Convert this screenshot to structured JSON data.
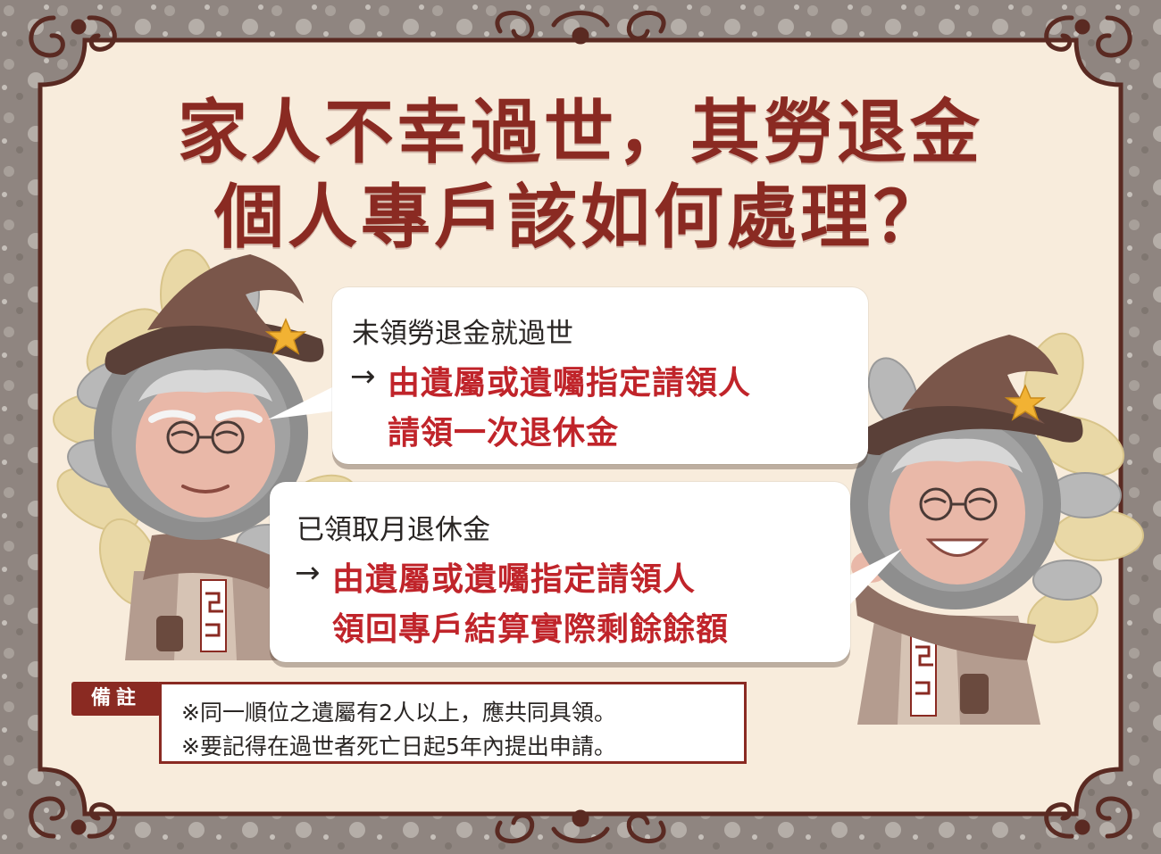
{
  "title": {
    "line1": "家人不幸過世，其勞退金",
    "line2": "個人專戶該如何處理？"
  },
  "bubble1": {
    "heading": "未領勞退金就過世",
    "arrow": "→",
    "red_line1": "由遺屬或遺囑指定請領人",
    "red_line2": "請領一次退休金"
  },
  "bubble2": {
    "heading": "已領取月退休金",
    "arrow": "→",
    "red_line1": "由遺屬或遺囑指定請領人",
    "red_line2": "領回專戶結算實際剩餘餘額"
  },
  "note": {
    "tag": "備註",
    "line1": "※同一順位之遺屬有2人以上，應共同具領。",
    "line2": "※要記得在過世者死亡日起5年內提出申請。"
  },
  "colors": {
    "title": "#8a2a22",
    "emphasis": "#c0242a",
    "frame_fill": "#f8ecdc",
    "frame_stroke": "#5a2a22",
    "background": "#8f8580"
  }
}
